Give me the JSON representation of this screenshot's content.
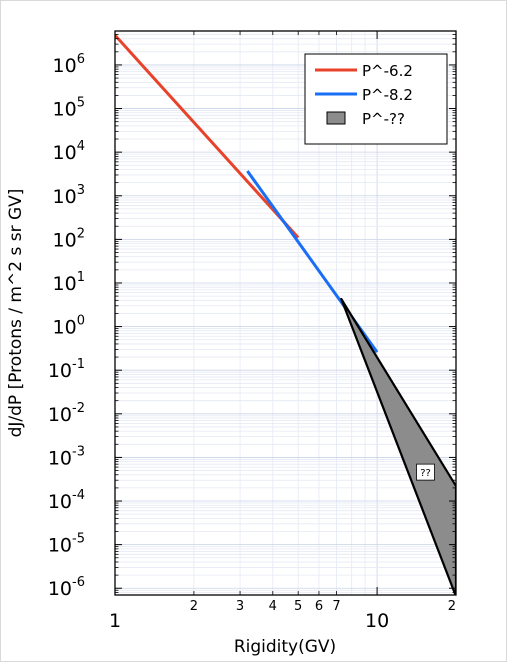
{
  "chart_data": {
    "type": "line",
    "xlabel": "Rigidity(GV)",
    "ylabel": "dJ/dP [Protons / m^2 s sr GV]",
    "xscale": "log",
    "yscale": "log",
    "xlim": [
      1,
      20
    ],
    "ylim": [
      7e-07,
      6000000.0
    ],
    "grid": true,
    "legend_position": "top-right",
    "x_major_ticks": [
      {
        "value": 1,
        "label": "1"
      },
      {
        "value": 10,
        "label": "10"
      }
    ],
    "x_minor_ticks": [
      {
        "value": 2,
        "label": "2"
      },
      {
        "value": 3,
        "label": "3"
      },
      {
        "value": 4,
        "label": "4"
      },
      {
        "value": 5,
        "label": "5"
      },
      {
        "value": 6,
        "label": "6"
      },
      {
        "value": 7,
        "label": "7"
      },
      {
        "value": 20,
        "label": "2"
      }
    ],
    "y_ticks": [
      {
        "value": 1000000.0,
        "base": "10",
        "exp": "6"
      },
      {
        "value": 100000.0,
        "base": "10",
        "exp": "5"
      },
      {
        "value": 10000.0,
        "base": "10",
        "exp": "4"
      },
      {
        "value": 1000.0,
        "base": "10",
        "exp": "3"
      },
      {
        "value": 100.0,
        "base": "10",
        "exp": "2"
      },
      {
        "value": 10.0,
        "base": "10",
        "exp": "1"
      },
      {
        "value": 1.0,
        "base": "10",
        "exp": "0"
      },
      {
        "value": 0.1,
        "base": "10",
        "exp": "-1"
      },
      {
        "value": 0.01,
        "base": "10",
        "exp": "-2"
      },
      {
        "value": 0.001,
        "base": "10",
        "exp": "-3"
      },
      {
        "value": 0.0001,
        "base": "10",
        "exp": "-4"
      },
      {
        "value": 1e-05,
        "base": "10",
        "exp": "-5"
      },
      {
        "value": 1e-06,
        "base": "10",
        "exp": "-6"
      }
    ],
    "series": [
      {
        "name": "P^-6.2",
        "kind": "line",
        "color": "#e8432a",
        "points": [
          [
            1,
            4800000.0
          ],
          [
            5,
            110
          ]
        ]
      },
      {
        "name": "P^-8.2",
        "kind": "line",
        "color": "#1a6ef5",
        "points": [
          [
            3.2,
            3700
          ],
          [
            10,
            0.26
          ]
        ]
      },
      {
        "name": "P^-??",
        "kind": "band",
        "fill": "#8c8c8c",
        "points": [
          [
            7.3,
            4.3
          ],
          [
            20,
            0.00022
          ],
          [
            20,
            6.5e-07
          ]
        ]
      }
    ],
    "annotations": [
      {
        "text": "??",
        "x": 15.3,
        "y": 0.00046
      }
    ]
  }
}
